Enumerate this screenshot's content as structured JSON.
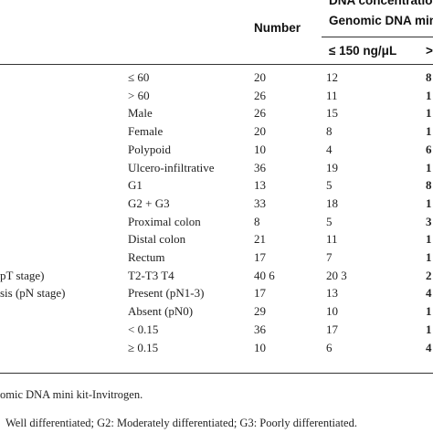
{
  "header": {
    "number_label": "Number",
    "dna_title_line1": "DNA concentration P",
    "dna_title_line2": "Genomic DNA mini ki",
    "col_low": "≤ 150 ng/μL",
    "col_high": ">"
  },
  "rows": [
    {
      "group": "",
      "category": "≤ 60",
      "number": "20",
      "low": "12",
      "high": "8"
    },
    {
      "group": "",
      "category": "> 60",
      "number": "26",
      "low": "11",
      "high": "1"
    },
    {
      "group": "",
      "category": "Male",
      "number": "26",
      "low": "15",
      "high": "1"
    },
    {
      "group": "",
      "category": "Female",
      "number": "20",
      "low": "8",
      "high": "1"
    },
    {
      "group": "",
      "category": "Polypoid",
      "number": "10",
      "low": "4",
      "high": "6"
    },
    {
      "group": "",
      "category": "Ulcero-infiltrative",
      "number": "36",
      "low": "19",
      "high": "1"
    },
    {
      "group": "",
      "category": "G1",
      "number": "13",
      "low": "5",
      "high": "8"
    },
    {
      "group": "",
      "category": "G2 + G3",
      "number": "33",
      "low": "18",
      "high": "1"
    },
    {
      "group": "",
      "category": "Proximal colon",
      "number": "8",
      "low": "5",
      "high": "3"
    },
    {
      "group": "",
      "category": "Distal colon",
      "number": "21",
      "low": "11",
      "high": "1"
    },
    {
      "group": "",
      "category": "Rectum",
      "number": "17",
      "low": "7",
      "high": "1"
    },
    {
      "group": "pT stage)",
      "category": "T2-T3 T4",
      "number": "40 6",
      "low": "20 3",
      "high": "2"
    },
    {
      "group": "sis (pN stage)",
      "category": "Present (pN1-3)",
      "number": "17",
      "low": "13",
      "high": "4"
    },
    {
      "group": "",
      "category": "Absent (pN0)",
      "number": "29",
      "low": "10",
      "high": "1"
    },
    {
      "group": "",
      "category": "< 0.15",
      "number": "36",
      "low": "17",
      "high": "1"
    },
    {
      "group": "",
      "category": "≥ 0.15",
      "number": "10",
      "low": "6",
      "high": "4"
    }
  ],
  "footnotes": {
    "line1": "omic DNA mini kit-Invitrogen.",
    "line2": "Well differentiated; G2: Moderately differentiated; G3: Poorly differentiated."
  }
}
